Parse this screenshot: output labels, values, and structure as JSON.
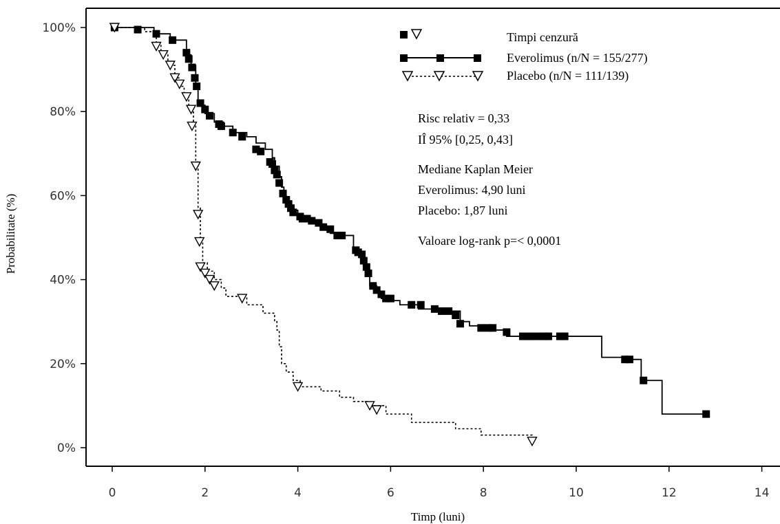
{
  "chart_data": {
    "type": "line",
    "xlabel": "Timp (luni)",
    "ylabel": "Probabilitate (%)",
    "xlim": [
      0,
      14
    ],
    "ylim": [
      0,
      100
    ],
    "x_ticks": [
      {
        "value": 0,
        "label": "0"
      },
      {
        "value": 2,
        "label": "2"
      },
      {
        "value": 4,
        "label": "4"
      },
      {
        "value": 6,
        "label": "6"
      },
      {
        "value": 8,
        "label": "8"
      },
      {
        "value": 10,
        "label": "10"
      },
      {
        "value": 12,
        "label": "12"
      },
      {
        "value": 14,
        "label": "14"
      }
    ],
    "y_ticks": [
      {
        "value": 0,
        "label": "0%"
      },
      {
        "value": 20,
        "label": "20%"
      },
      {
        "value": 40,
        "label": "40%"
      },
      {
        "value": 60,
        "label": "60%"
      },
      {
        "value": 80,
        "label": "80%"
      },
      {
        "value": 100,
        "label": "100%"
      }
    ],
    "grid": false,
    "legend": {
      "placement": "top-right",
      "censor_label": "Timpi cenzură",
      "entries": [
        {
          "label": "Everolimus (n/N = 155/277)",
          "series": "everolimus"
        },
        {
          "label": "Placebo (n/N = 111/139)",
          "series": "placebo"
        }
      ]
    },
    "annotations": {
      "hr": "Risc relativ = 0,33",
      "ci": "IÎ 95% [0,25, 0,43]",
      "km_title": "Mediane Kaplan Meier",
      "km_everolimus": "Everolimus: 4,90 luni",
      "km_placebo": "Placebo: 1,87 luni",
      "logrank": "Valoare log-rank p=< 0,0001"
    },
    "series": [
      {
        "key": "everolimus",
        "marker": "filled-square",
        "line": "solid",
        "color": "#000000",
        "steps": [
          [
            0,
            100
          ],
          [
            0.9,
            98.5
          ],
          [
            1.25,
            97
          ],
          [
            1.6,
            93.5
          ],
          [
            1.7,
            91
          ],
          [
            1.8,
            86
          ],
          [
            1.85,
            81.5
          ],
          [
            2.0,
            79.5
          ],
          [
            2.2,
            77.5
          ],
          [
            2.4,
            76.5
          ],
          [
            2.6,
            75
          ],
          [
            2.9,
            74
          ],
          [
            3.1,
            72.5
          ],
          [
            3.3,
            71
          ],
          [
            3.45,
            69
          ],
          [
            3.5,
            67
          ],
          [
            3.6,
            64.5
          ],
          [
            3.65,
            62
          ],
          [
            3.7,
            60
          ],
          [
            3.75,
            58
          ],
          [
            3.85,
            56.5
          ],
          [
            4.0,
            54.5
          ],
          [
            4.3,
            53.5
          ],
          [
            4.5,
            52
          ],
          [
            4.7,
            51
          ],
          [
            4.95,
            50.5
          ],
          [
            5.2,
            47
          ],
          [
            5.35,
            46
          ],
          [
            5.4,
            44
          ],
          [
            5.45,
            42
          ],
          [
            5.55,
            38.5
          ],
          [
            5.7,
            37
          ],
          [
            5.8,
            35.5
          ],
          [
            6.0,
            35
          ],
          [
            6.2,
            34
          ],
          [
            6.6,
            33
          ],
          [
            7.0,
            32.5
          ],
          [
            7.5,
            30
          ],
          [
            7.7,
            29
          ],
          [
            8.1,
            28
          ],
          [
            8.5,
            26.5
          ],
          [
            10.55,
            21.5
          ],
          [
            11.15,
            21
          ],
          [
            11.4,
            16
          ],
          [
            11.85,
            8
          ],
          [
            12.8,
            8
          ]
        ],
        "censored": [
          [
            0.05,
            100
          ],
          [
            0.55,
            99.5
          ],
          [
            0.95,
            98.5
          ],
          [
            1.3,
            97
          ],
          [
            1.6,
            94
          ],
          [
            1.65,
            92.5
          ],
          [
            1.72,
            90.5
          ],
          [
            1.78,
            88
          ],
          [
            1.82,
            86
          ],
          [
            1.9,
            82
          ],
          [
            2.0,
            80.5
          ],
          [
            2.1,
            79
          ],
          [
            2.3,
            77
          ],
          [
            2.35,
            76.5
          ],
          [
            2.6,
            75
          ],
          [
            2.8,
            74
          ],
          [
            3.1,
            71
          ],
          [
            3.2,
            70.5
          ],
          [
            3.4,
            68
          ],
          [
            3.45,
            67.5
          ],
          [
            3.5,
            66
          ],
          [
            3.55,
            65
          ],
          [
            3.6,
            63
          ],
          [
            3.68,
            60.5
          ],
          [
            3.75,
            59
          ],
          [
            3.8,
            58
          ],
          [
            3.85,
            57
          ],
          [
            3.9,
            56
          ],
          [
            4.05,
            55
          ],
          [
            4.1,
            54.5
          ],
          [
            4.2,
            54.5
          ],
          [
            4.3,
            54
          ],
          [
            4.45,
            53.5
          ],
          [
            4.55,
            52.5
          ],
          [
            4.7,
            52
          ],
          [
            4.85,
            50.5
          ],
          [
            4.95,
            50.5
          ],
          [
            5.25,
            47
          ],
          [
            5.3,
            46.5
          ],
          [
            5.38,
            46
          ],
          [
            5.42,
            44.5
          ],
          [
            5.48,
            43
          ],
          [
            5.52,
            41.5
          ],
          [
            5.62,
            38.5
          ],
          [
            5.7,
            37.5
          ],
          [
            5.8,
            36.5
          ],
          [
            5.9,
            35.5
          ],
          [
            6.0,
            35.5
          ],
          [
            6.45,
            34
          ],
          [
            6.65,
            34
          ],
          [
            6.95,
            33
          ],
          [
            7.1,
            32.5
          ],
          [
            7.25,
            32.5
          ],
          [
            7.4,
            31.5
          ],
          [
            7.5,
            29.5
          ],
          [
            7.95,
            28.5
          ],
          [
            8.1,
            28.5
          ],
          [
            8.2,
            28.5
          ],
          [
            8.5,
            27.5
          ],
          [
            8.85,
            26.5
          ],
          [
            9.0,
            26.5
          ],
          [
            9.15,
            26.5
          ],
          [
            9.3,
            26.5
          ],
          [
            9.4,
            26.5
          ],
          [
            9.65,
            26.5
          ],
          [
            9.75,
            26.5
          ],
          [
            11.05,
            21
          ],
          [
            11.15,
            21
          ],
          [
            11.45,
            16
          ],
          [
            12.8,
            8
          ]
        ]
      },
      {
        "key": "placebo",
        "marker": "open-triangle-down",
        "line": "dotted",
        "color": "#000000",
        "steps": [
          [
            0,
            100
          ],
          [
            0.7,
            99
          ],
          [
            0.95,
            96
          ],
          [
            1.05,
            94
          ],
          [
            1.2,
            91
          ],
          [
            1.35,
            88
          ],
          [
            1.45,
            86
          ],
          [
            1.55,
            84
          ],
          [
            1.65,
            81
          ],
          [
            1.75,
            77
          ],
          [
            1.8,
            68
          ],
          [
            1.85,
            57
          ],
          [
            1.9,
            50
          ],
          [
            1.95,
            44
          ],
          [
            2.05,
            42
          ],
          [
            2.2,
            40
          ],
          [
            2.35,
            38
          ],
          [
            2.45,
            36
          ],
          [
            2.9,
            34
          ],
          [
            3.25,
            32
          ],
          [
            3.5,
            30
          ],
          [
            3.55,
            28
          ],
          [
            3.6,
            24
          ],
          [
            3.65,
            20
          ],
          [
            3.75,
            18
          ],
          [
            3.9,
            16
          ],
          [
            4.05,
            14.5
          ],
          [
            4.5,
            13.5
          ],
          [
            4.9,
            12
          ],
          [
            5.2,
            11
          ],
          [
            5.55,
            10
          ],
          [
            5.9,
            8
          ],
          [
            6.45,
            6
          ],
          [
            7.4,
            4.5
          ],
          [
            7.95,
            3
          ],
          [
            9.05,
            2
          ]
        ],
        "censored": [
          [
            0.05,
            100
          ],
          [
            0.95,
            95.5
          ],
          [
            1.1,
            93.5
          ],
          [
            1.25,
            91
          ],
          [
            1.35,
            88
          ],
          [
            1.45,
            86.5
          ],
          [
            1.6,
            83.5
          ],
          [
            1.7,
            80.5
          ],
          [
            1.72,
            76.5
          ],
          [
            1.8,
            67
          ],
          [
            1.85,
            55.5
          ],
          [
            1.88,
            49
          ],
          [
            1.9,
            43
          ],
          [
            2.0,
            41.5
          ],
          [
            2.1,
            40
          ],
          [
            2.2,
            38.5
          ],
          [
            2.8,
            35.5
          ],
          [
            4.0,
            14.5
          ],
          [
            5.55,
            10
          ],
          [
            5.7,
            9
          ],
          [
            9.05,
            1.5
          ]
        ]
      }
    ]
  }
}
